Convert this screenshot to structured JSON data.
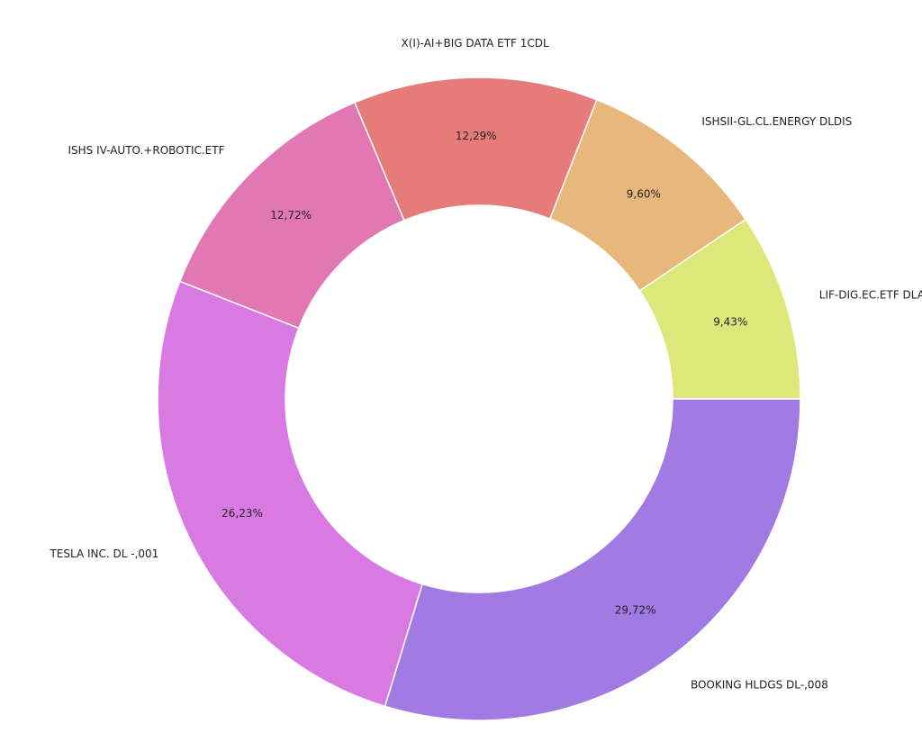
{
  "chart_data": {
    "type": "pie",
    "donut": true,
    "title": "",
    "legend": "none",
    "slices": [
      {
        "label": "LIF-DIG.EC.ETF DLA",
        "value": 9.43,
        "display": "9,43%",
        "color": "#dde87a"
      },
      {
        "label": "ISHSII-GL.CL.ENERGY DLDIS",
        "value": 9.6,
        "display": "9,60%",
        "color": "#e8b77c"
      },
      {
        "label": "X(I)-AI+BIG DATA ETF 1CDL",
        "value": 12.29,
        "display": "12,29%",
        "color": "#e57c79"
      },
      {
        "label": "ISHS IV-AUTO.+ROBOTIC.ETF",
        "value": 12.72,
        "display": "12,72%",
        "color": "#e278b3"
      },
      {
        "label": "TESLA INC. DL -,001",
        "value": 26.23,
        "display": "26,23%",
        "color": "#d97ae3"
      },
      {
        "label": "BOOKING HLDGS DL-,008",
        "value": 29.72,
        "display": "29,72%",
        "color": "#a17ae3"
      }
    ]
  }
}
